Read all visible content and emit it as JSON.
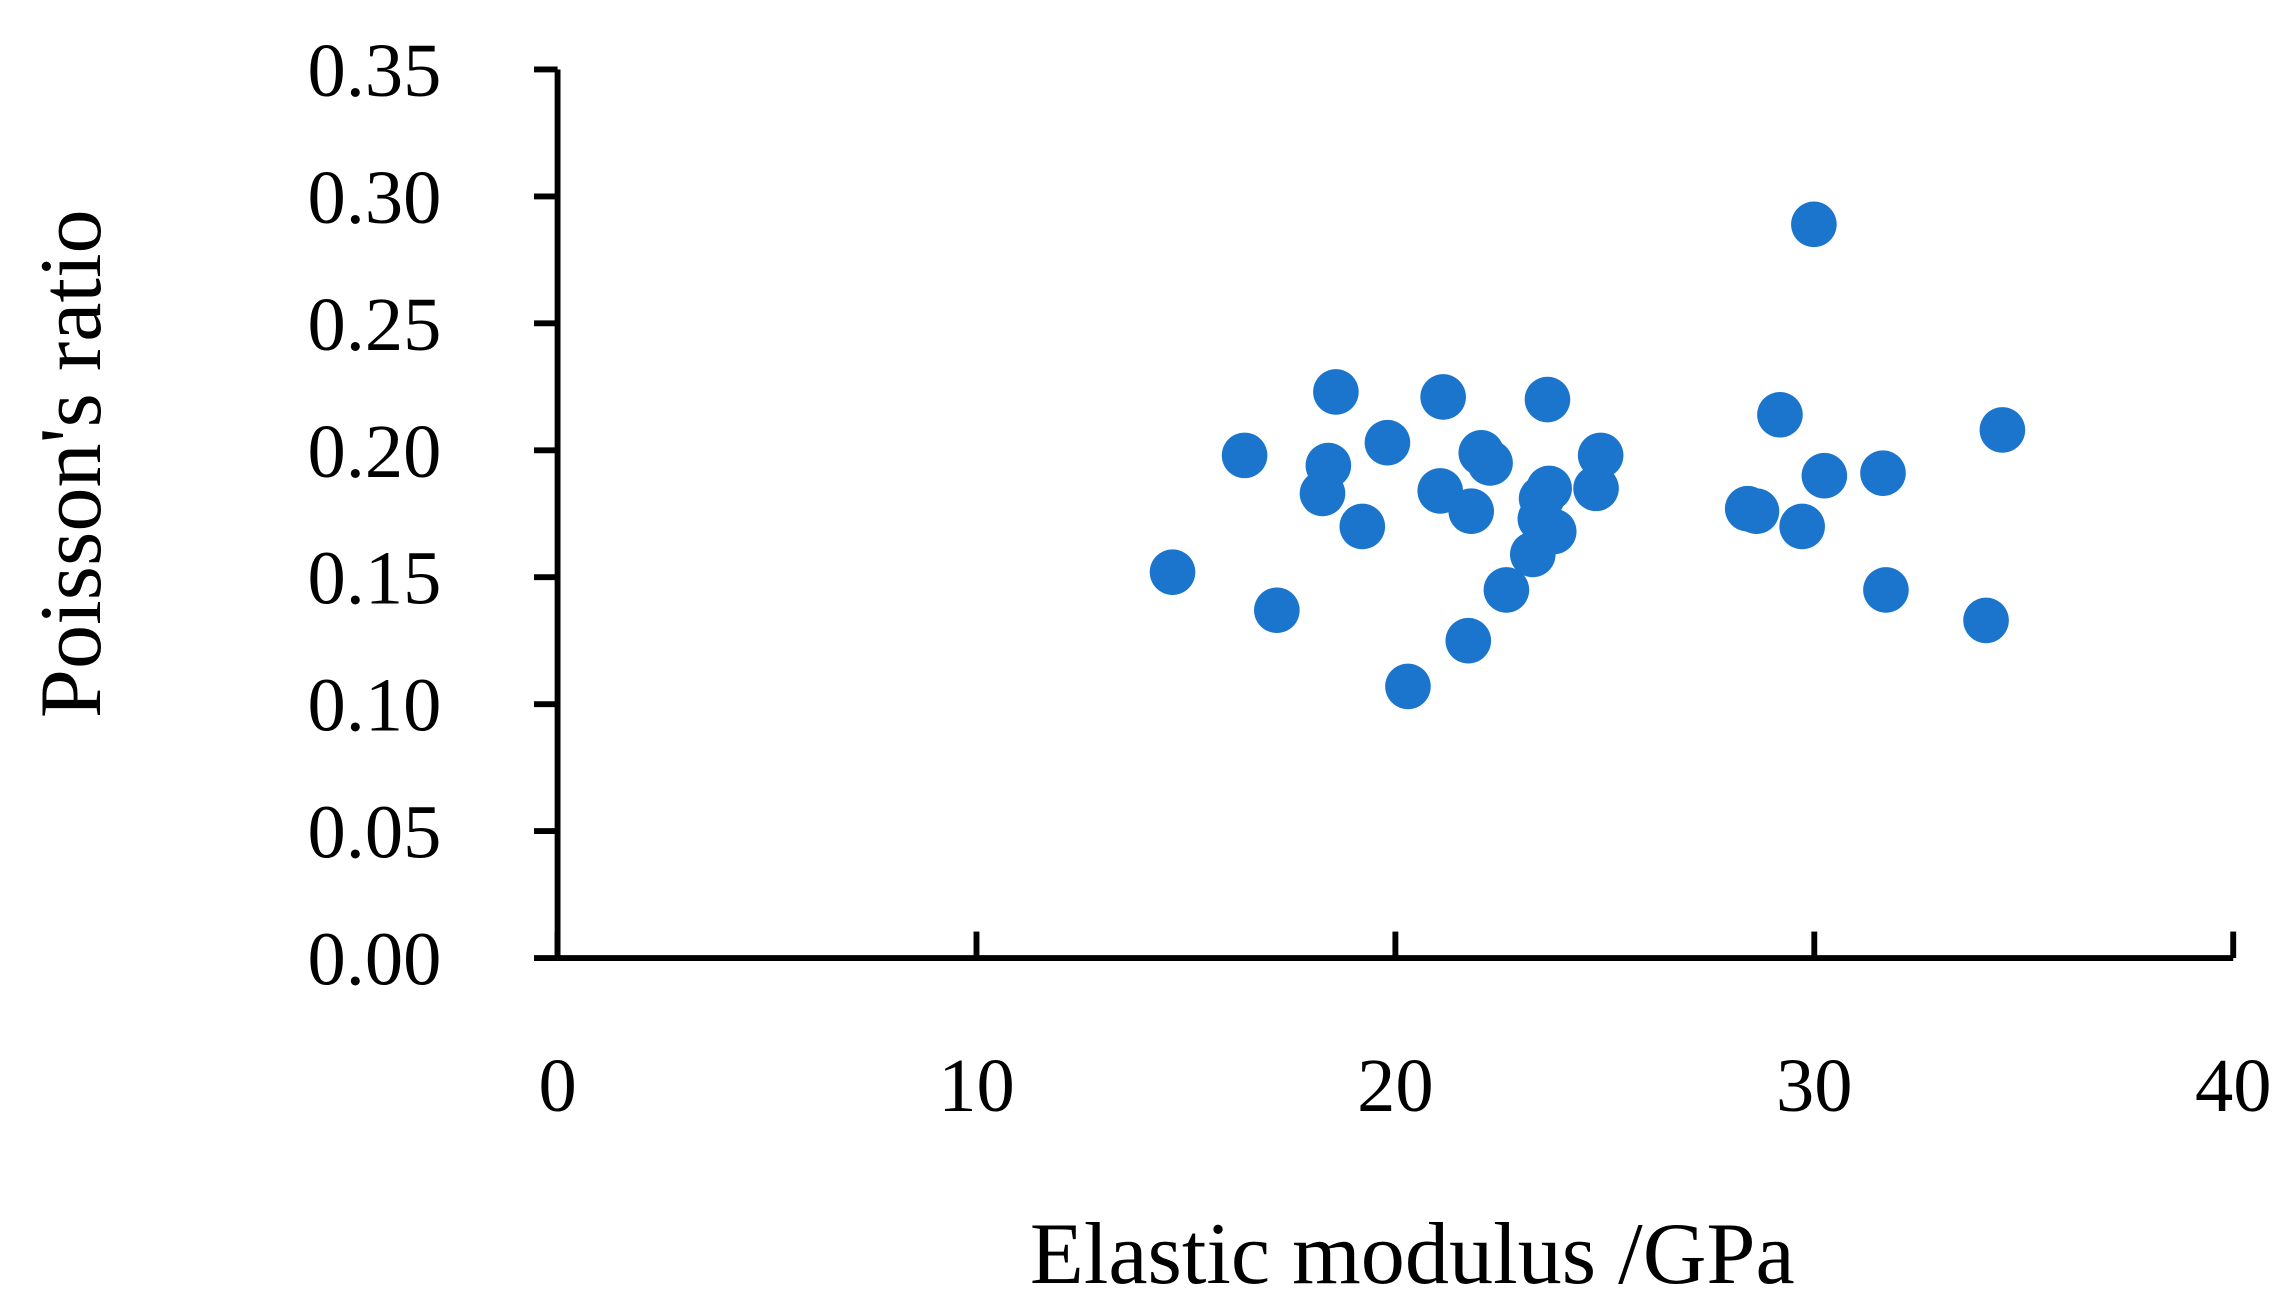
{
  "chart_data": {
    "type": "scatter",
    "xlabel": "Elastic modulus /GPa",
    "ylabel": "Poisson's ratio",
    "color": "#1b75cc",
    "xlim": [
      0,
      40
    ],
    "xticks": [
      0,
      10,
      20,
      30,
      40
    ],
    "ylim": [
      0,
      0.35
    ],
    "yticks": [
      {
        "value": 0,
        "label": "0.00"
      },
      0.05,
      {
        "value": 0.1,
        "label": "0.10"
      },
      0.15,
      {
        "value": 0.2,
        "label": "0.20"
      },
      0.25,
      {
        "value": 0.3,
        "label": "0.30"
      },
      0.35
    ],
    "x": [
      14.68,
      16.4,
      17.17,
      18.58,
      18.4,
      18.26,
      19.21,
      19.81,
      20.3,
      21.14,
      21.07,
      21.81,
      21.74,
      22.05,
      22.26,
      22.65,
      23.28,
      23.63,
      23.49,
      23.67,
      23.46,
      23.78,
      24.79,
      24.9,
      28.41,
      28.62,
      29.18,
      29.71,
      29.99,
      30.24,
      31.64,
      31.71,
      34.1,
      34.49
    ],
    "y": [
      0.152,
      0.198,
      0.137,
      0.223,
      0.194,
      0.183,
      0.17,
      0.203,
      0.107,
      0.221,
      0.184,
      0.176,
      0.125,
      0.199,
      0.195,
      0.145,
      0.159,
      0.22,
      0.181,
      0.185,
      0.173,
      0.168,
      0.185,
      0.198,
      0.177,
      0.176,
      0.214,
      0.17,
      0.289,
      0.19,
      0.191,
      0.145,
      0.133,
      0.208
    ]
  }
}
